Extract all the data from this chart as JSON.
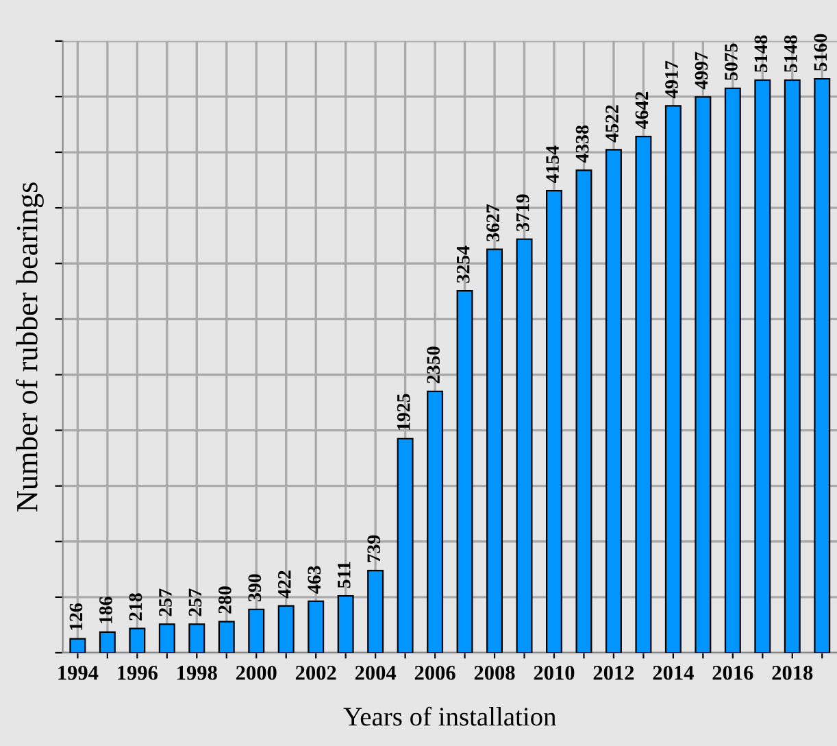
{
  "chart_data": {
    "type": "bar",
    "xlabel": "Years of installation",
    "ylabel": "Number of rubber bearings",
    "categories": [
      "1994",
      null,
      "1996",
      null,
      "1998",
      null,
      "2000",
      null,
      "2002",
      null,
      "2004",
      null,
      "2006",
      null,
      "2008",
      null,
      "2010",
      null,
      "2012",
      null,
      "2014",
      null,
      "2016",
      null,
      "2018",
      null
    ],
    "values": [
      126,
      186,
      218,
      257,
      257,
      280,
      390,
      422,
      463,
      511,
      739,
      1925,
      2350,
      3254,
      3627,
      3719,
      4154,
      4338,
      4522,
      4642,
      4917,
      4997,
      5075,
      5148,
      5148,
      5160
    ],
    "color": "#0095ff",
    "ylim": [
      0,
      5500
    ],
    "yticks": [
      {
        "value": 0,
        "label": null
      },
      {
        "value": 500,
        "label": null
      },
      {
        "value": 1000,
        "label": null
      },
      {
        "value": 1500,
        "label": null
      },
      {
        "value": 2000,
        "label": null
      },
      {
        "value": 2500,
        "label": null
      },
      {
        "value": 3000,
        "label": null
      },
      {
        "value": 3500,
        "label": null
      },
      {
        "value": 4000,
        "label": null
      },
      {
        "value": 4500,
        "label": null
      },
      {
        "value": 5000,
        "label": null
      },
      {
        "value": 5500,
        "label": null
      }
    ],
    "tick_labels": "x",
    "grid": true,
    "data_labels": true
  }
}
